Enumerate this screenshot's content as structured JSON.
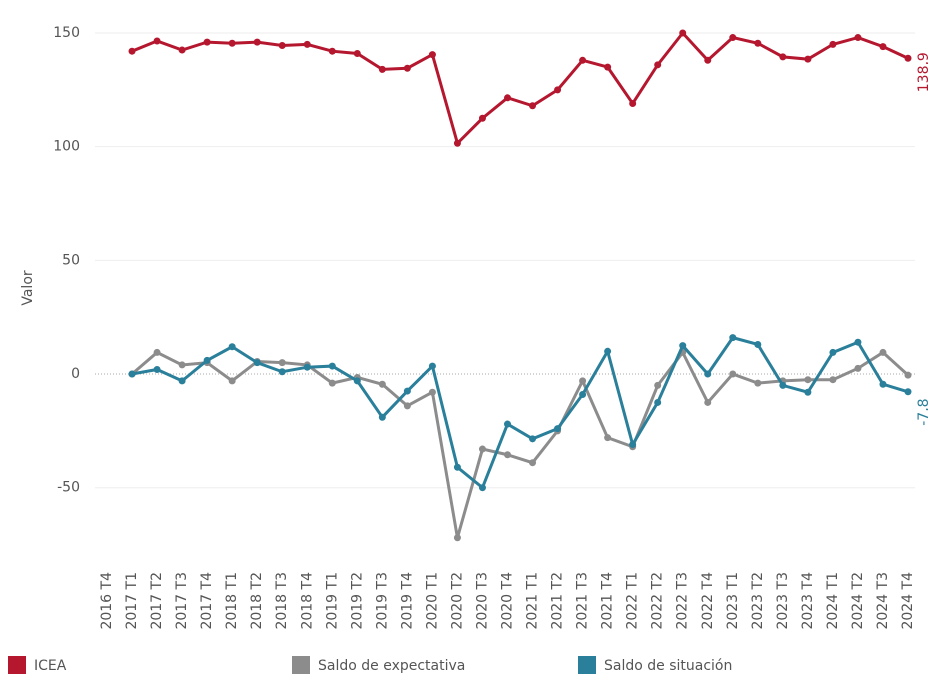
{
  "chart_data": {
    "type": "line",
    "y_label": "Valor",
    "categories": [
      "2016 T4",
      "2017 T1",
      "2017 T2",
      "2017 T3",
      "2017 T4",
      "2018 T1",
      "2018 T2",
      "2018 T3",
      "2018 T4",
      "2019 T1",
      "2019 T2",
      "2019 T3",
      "2019 T4",
      "2020 T1",
      "2020 T2",
      "2020 T3",
      "2020 T4",
      "2021 T1",
      "2021 T2",
      "2021 T3",
      "2021 T4",
      "2022 T1",
      "2022 T2",
      "2022 T3",
      "2022 T4",
      "2023 T1",
      "2023 T2",
      "2023 T3",
      "2023 T4",
      "2024 T1",
      "2024 T2",
      "2024 T3",
      "2024 T4"
    ],
    "series": [
      {
        "name": "ICEA",
        "color": "#b5172f",
        "values": [
          null,
          142,
          146.5,
          142.5,
          146,
          145.5,
          146,
          144.5,
          145,
          142,
          141,
          134,
          134.5,
          140.5,
          101.5,
          112.5,
          121.5,
          118,
          125,
          138,
          135,
          119,
          136,
          150,
          138,
          148,
          145.5,
          139.5,
          138.5,
          145,
          148,
          144,
          138.9
        ],
        "value_labels": [
          null,
          null,
          null,
          null,
          null,
          null,
          null,
          null,
          null,
          null,
          null,
          null,
          null,
          null,
          null,
          null,
          null,
          null,
          null,
          null,
          null,
          null,
          null,
          null,
          null,
          null,
          null,
          null,
          null,
          null,
          null,
          null,
          "138,9"
        ]
      },
      {
        "name": "Saldo de expectativa",
        "color": "#8c8c8c",
        "values": [
          null,
          0,
          9.5,
          4,
          5,
          -3,
          5.5,
          5,
          4,
          -4,
          -1.5,
          -4.5,
          -14,
          -8,
          -72,
          -33,
          -35.5,
          -39,
          -25,
          -3,
          -28,
          -32,
          -5,
          9.5,
          -12.5,
          0,
          -4,
          -3,
          -2.5,
          -2.5,
          2.5,
          9.5,
          -0.5
        ]
      },
      {
        "name": "Saldo de situación",
        "color": "#2a7f9a",
        "values": [
          null,
          0,
          2,
          -3,
          6,
          12,
          5,
          1,
          3,
          3.5,
          -3,
          -19,
          -7.5,
          3.5,
          -41,
          -50,
          -22,
          -28.5,
          -24,
          -9,
          10,
          -31,
          -12.5,
          12.5,
          0,
          16,
          13,
          -5,
          -8,
          9.5,
          14,
          -4.5,
          -7.8
        ],
        "value_labels": [
          null,
          null,
          null,
          null,
          null,
          null,
          null,
          null,
          null,
          null,
          null,
          null,
          null,
          null,
          null,
          null,
          null,
          null,
          null,
          null,
          null,
          null,
          null,
          null,
          null,
          null,
          null,
          null,
          null,
          null,
          null,
          null,
          "-7,8"
        ]
      }
    ],
    "ylim": [
      -84,
      161
    ],
    "yticks": [
      -50,
      0,
      50,
      100,
      150
    ],
    "grid": true
  }
}
